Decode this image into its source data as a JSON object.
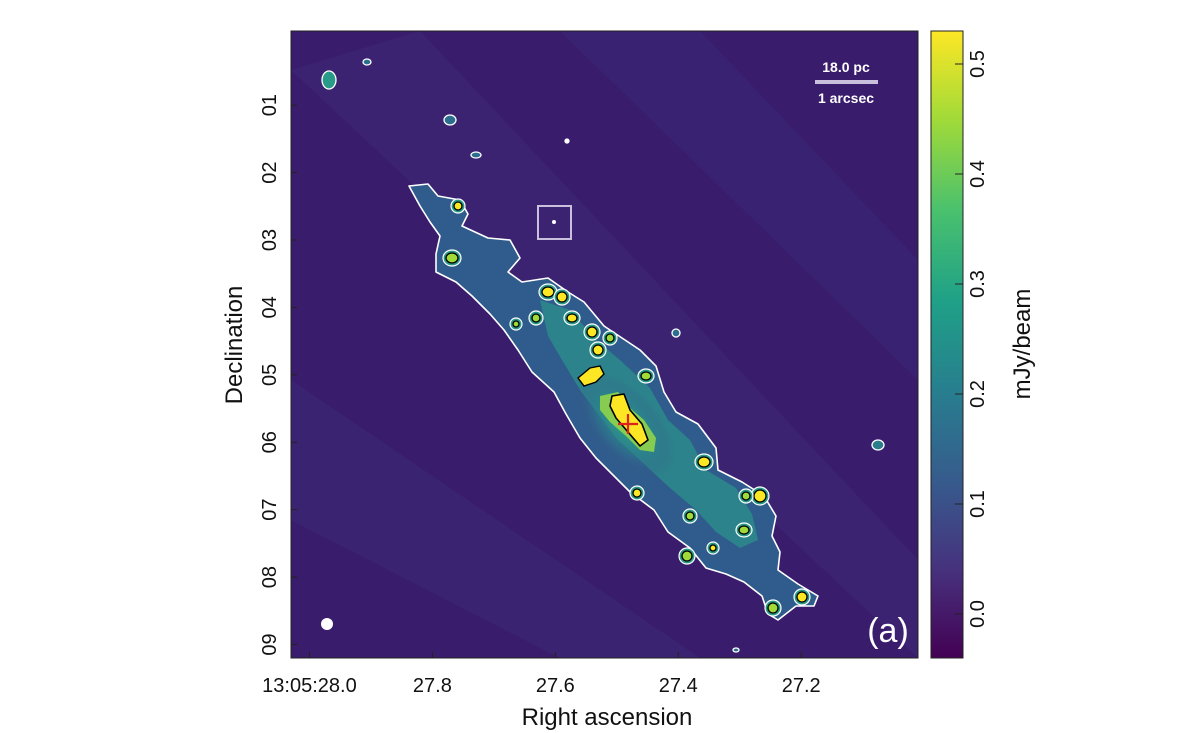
{
  "chart_data": {
    "type": "heatmap",
    "panel_label": "(a)",
    "xlabel": "Right ascension",
    "ylabel": "Declination",
    "x_ticks": [
      {
        "value": 28.0,
        "label": "13:05:28.0"
      },
      {
        "value": 27.8,
        "label": "27.8"
      },
      {
        "value": 27.6,
        "label": "27.6"
      },
      {
        "value": 27.4,
        "label": "27.4"
      },
      {
        "value": 27.2,
        "label": "27.2"
      }
    ],
    "xlim": [
      28.03,
      27.01
    ],
    "y_ticks": [
      {
        "value": 1,
        "label": "01"
      },
      {
        "value": 2,
        "label": "02"
      },
      {
        "value": 3,
        "label": "03"
      },
      {
        "value": 4,
        "label": "04"
      },
      {
        "value": 5,
        "label": "05"
      },
      {
        "value": 6,
        "label": "06"
      },
      {
        "value": 7,
        "label": "07"
      },
      {
        "value": 8,
        "label": "08"
      },
      {
        "value": 9,
        "label": "09"
      }
    ],
    "ylim": [
      -0.1,
      9.2
    ],
    "colorbar": {
      "label": "mJy/beam",
      "range": [
        -0.04,
        0.53
      ],
      "ticks": [
        {
          "value": 0.0,
          "label": "0.0"
        },
        {
          "value": 0.1,
          "label": "0.1"
        },
        {
          "value": 0.2,
          "label": "0.2"
        },
        {
          "value": 0.3,
          "label": "0.3"
        },
        {
          "value": 0.4,
          "label": "0.4"
        },
        {
          "value": 0.5,
          "label": "0.5"
        }
      ],
      "colormap": [
        "#440154",
        "#46327e",
        "#365c8d",
        "#277f8e",
        "#1fa187",
        "#4ac16d",
        "#a0da39",
        "#fde725"
      ]
    },
    "scale_bar": {
      "physical": "18.0 pc",
      "angular": "1 arcsec"
    },
    "peak_marker": {
      "symbol": "cross",
      "ra": 27.48,
      "dec": 5.4,
      "color": "#e0201c"
    },
    "box_marker": {
      "ra": 27.61,
      "dec": 2.25
    },
    "colors": {
      "background": "#3a1c6c",
      "contour_outer": "#ffffff",
      "contour_inner": "#000000",
      "emission_low": "#2c6e8e",
      "emission_mid": "#26a884",
      "emission_high": "#fde725",
      "box": "#c8c0dc"
    }
  }
}
